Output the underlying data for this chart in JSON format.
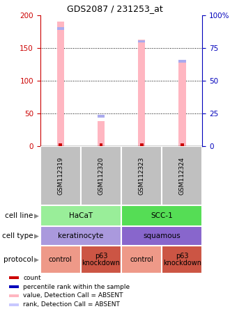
{
  "title": "GDS2087 / 231253_at",
  "samples": [
    "GSM112319",
    "GSM112320",
    "GSM112323",
    "GSM112324"
  ],
  "bar_values": [
    190,
    38,
    163,
    128
  ],
  "rank_values": [
    90,
    23,
    80,
    65
  ],
  "bar_color": "#ffb6c1",
  "rank_color": "#aaaaee",
  "red_marker_color": "#cc0000",
  "ylim_left": [
    0,
    200
  ],
  "ylim_right": [
    0,
    100
  ],
  "yticks_left": [
    0,
    50,
    100,
    150,
    200
  ],
  "yticks_right": [
    0,
    25,
    50,
    75,
    100
  ],
  "ytick_labels_right": [
    "0",
    "25",
    "50",
    "75",
    "100%"
  ],
  "left_axis_color": "#cc0000",
  "right_axis_color": "#0000bb",
  "cell_line_labels": [
    "HaCaT",
    "SCC-1"
  ],
  "cell_line_colors": [
    "#99ee99",
    "#55dd55"
  ],
  "cell_type_labels": [
    "keratinocyte",
    "squamous"
  ],
  "cell_type_colors": [
    "#aa99dd",
    "#8866cc"
  ],
  "protocol_labels": [
    "control",
    "p63\nknockdown",
    "control",
    "p63\nknockdown"
  ],
  "protocol_colors": [
    "#ee9988",
    "#cc5544",
    "#ee9988",
    "#cc5544"
  ],
  "sample_bg_color": "#c0c0c0",
  "bar_width": 0.18,
  "legend_items": [
    {
      "color": "#cc0000",
      "label": "count"
    },
    {
      "color": "#0000bb",
      "label": "percentile rank within the sample"
    },
    {
      "color": "#ffb6c1",
      "label": "value, Detection Call = ABSENT"
    },
    {
      "color": "#c8c8ff",
      "label": "rank, Detection Call = ABSENT"
    }
  ]
}
